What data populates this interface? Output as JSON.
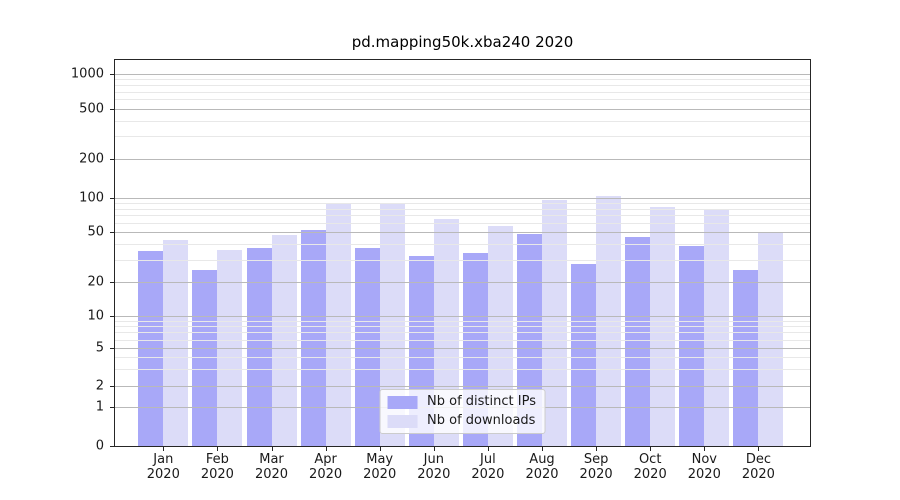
{
  "chart_data": {
    "type": "bar",
    "title": "pd.mapping50k.xba240 2020",
    "categories": [
      "Jan",
      "Feb",
      "Mar",
      "Apr",
      "May",
      "Jun",
      "Jul",
      "Aug",
      "Sep",
      "Oct",
      "Nov",
      "Dec"
    ],
    "year": "2020",
    "series": [
      {
        "name": "Nb of distinct IPs",
        "color": "#a8a8f8",
        "values": [
          35,
          25,
          37,
          52,
          37,
          32,
          34,
          48,
          28,
          46,
          39,
          25
        ]
      },
      {
        "name": "Nb of downloads",
        "color": "#dcdcf8",
        "values": [
          43,
          36,
          47,
          90,
          88,
          65,
          56,
          96,
          102,
          82,
          78,
          49
        ]
      }
    ],
    "yscale": "symlog",
    "ylim": [
      0,
      1280
    ],
    "y_ticks": [
      0,
      1,
      2,
      5,
      10,
      20,
      50,
      100,
      200,
      500,
      1000
    ],
    "y_minor_ticks": [
      3,
      4,
      6,
      7,
      8,
      9,
      30,
      40,
      60,
      70,
      80,
      90,
      300,
      400,
      600,
      700,
      800,
      900
    ],
    "grid": true,
    "legend_position": "lower center"
  },
  "colors": {
    "ips_bar": "#a8a8f8",
    "downloads_bar": "#dcdcf8",
    "grid_major": "#b9b9b9",
    "grid_minor": "#e8e8e8",
    "spine": "#262626"
  }
}
